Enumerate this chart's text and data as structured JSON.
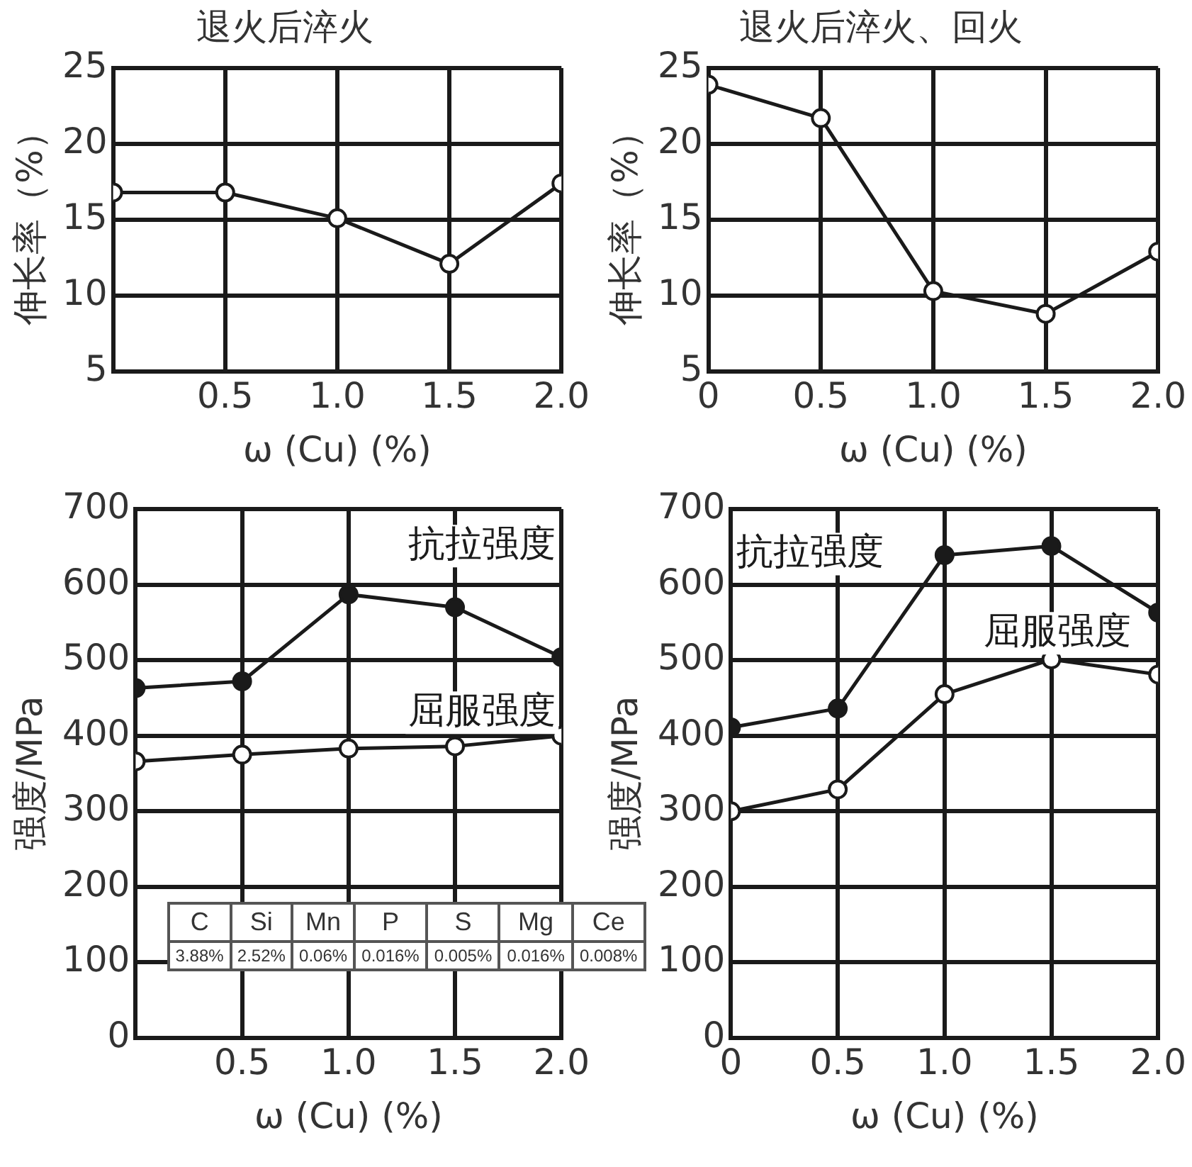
{
  "chart_data": [
    {
      "type": "line",
      "title": "退火后淬火",
      "xlabel": "ω (Cu) (%)",
      "ylabel": "伸长率（%）",
      "x": [
        0,
        0.5,
        1,
        1.5,
        2
      ],
      "xlim": [
        0,
        2
      ],
      "xticks": [
        {
          "value": 0,
          "label": null
        },
        0.5,
        {
          "value": 1,
          "label": "1.0"
        },
        1.5,
        {
          "value": 2,
          "label": "2.0"
        }
      ],
      "ylim": [
        5,
        25
      ],
      "yticks": [
        5,
        10,
        15,
        20,
        25
      ],
      "grid": true,
      "marker": "circle",
      "series": [
        {
          "color": "#1a1a1a",
          "values": [
            16.8,
            16.8,
            15.1,
            12.1,
            17.4
          ]
        }
      ]
    },
    {
      "type": "line",
      "title": "退火后淬火、回火",
      "xlabel": "ω (Cu) (%)",
      "ylabel": "伸长率（%）",
      "x": [
        0,
        0.5,
        1,
        1.5,
        2
      ],
      "xlim": [
        0,
        2
      ],
      "xticks": [
        0,
        0.5,
        {
          "value": 1,
          "label": "1.0"
        },
        1.5,
        {
          "value": 2,
          "label": "2.0"
        }
      ],
      "ylim": [
        5,
        25
      ],
      "yticks": [
        5,
        10,
        15,
        20,
        25
      ],
      "grid": true,
      "marker": "circle",
      "series": [
        {
          "color": "#1a1a1a",
          "values": [
            23.9,
            21.7,
            10.3,
            8.8,
            12.9
          ]
        }
      ]
    },
    {
      "type": "line",
      "xlabel": "ω (Cu) (%)",
      "ylabel": "强度/MPa",
      "x": [
        0,
        0.5,
        1,
        1.5,
        2
      ],
      "xlim": [
        0,
        2
      ],
      "xticks": [
        {
          "value": 0,
          "label": null
        },
        0.5,
        {
          "value": 1,
          "label": "1.0"
        },
        1.5,
        {
          "value": 2,
          "label": "2.0"
        }
      ],
      "ylim": [
        0,
        700
      ],
      "yticks": [
        0,
        100,
        200,
        300,
        400,
        500,
        600,
        700
      ],
      "grid": true,
      "marker": "circle",
      "series": [
        {
          "name": "抗拉强度",
          "color": "#1a1a1a",
          "values": [
            463,
            472,
            587,
            570,
            504
          ]
        },
        {
          "name": "屈服强度",
          "color": "#1a1a1a",
          "values": [
            366,
            375,
            383,
            386,
            400
          ]
        }
      ]
    },
    {
      "type": "line",
      "xlabel": "ω (Cu) (%)",
      "ylabel": "强度/MPa",
      "x": [
        0,
        0.5,
        1,
        1.5,
        2
      ],
      "xlim": [
        0,
        2
      ],
      "xticks": [
        0,
        0.5,
        {
          "value": 1,
          "label": "1.0"
        },
        1.5,
        {
          "value": 2,
          "label": "2.0"
        }
      ],
      "ylim": [
        0,
        700
      ],
      "yticks": [
        0,
        100,
        200,
        300,
        400,
        500,
        600,
        700
      ],
      "grid": true,
      "marker": "circle",
      "series": [
        {
          "name": "抗拉强度",
          "color": "#1a1a1a",
          "values": [
            411,
            436,
            639,
            651,
            563
          ]
        },
        {
          "name": "屈服强度",
          "color": "#1a1a1a",
          "values": [
            300,
            329,
            455,
            501,
            481
          ]
        }
      ]
    },
    {
      "type": "other",
      "categories": [
        "C",
        "Si",
        "Mn",
        "P",
        "S",
        "Mg",
        "Ce"
      ],
      "value_labels": [
        "3.88%",
        "2.52%",
        "0.06%",
        "0.016%",
        "0.005%",
        "0.016%",
        "0.008%"
      ]
    }
  ]
}
